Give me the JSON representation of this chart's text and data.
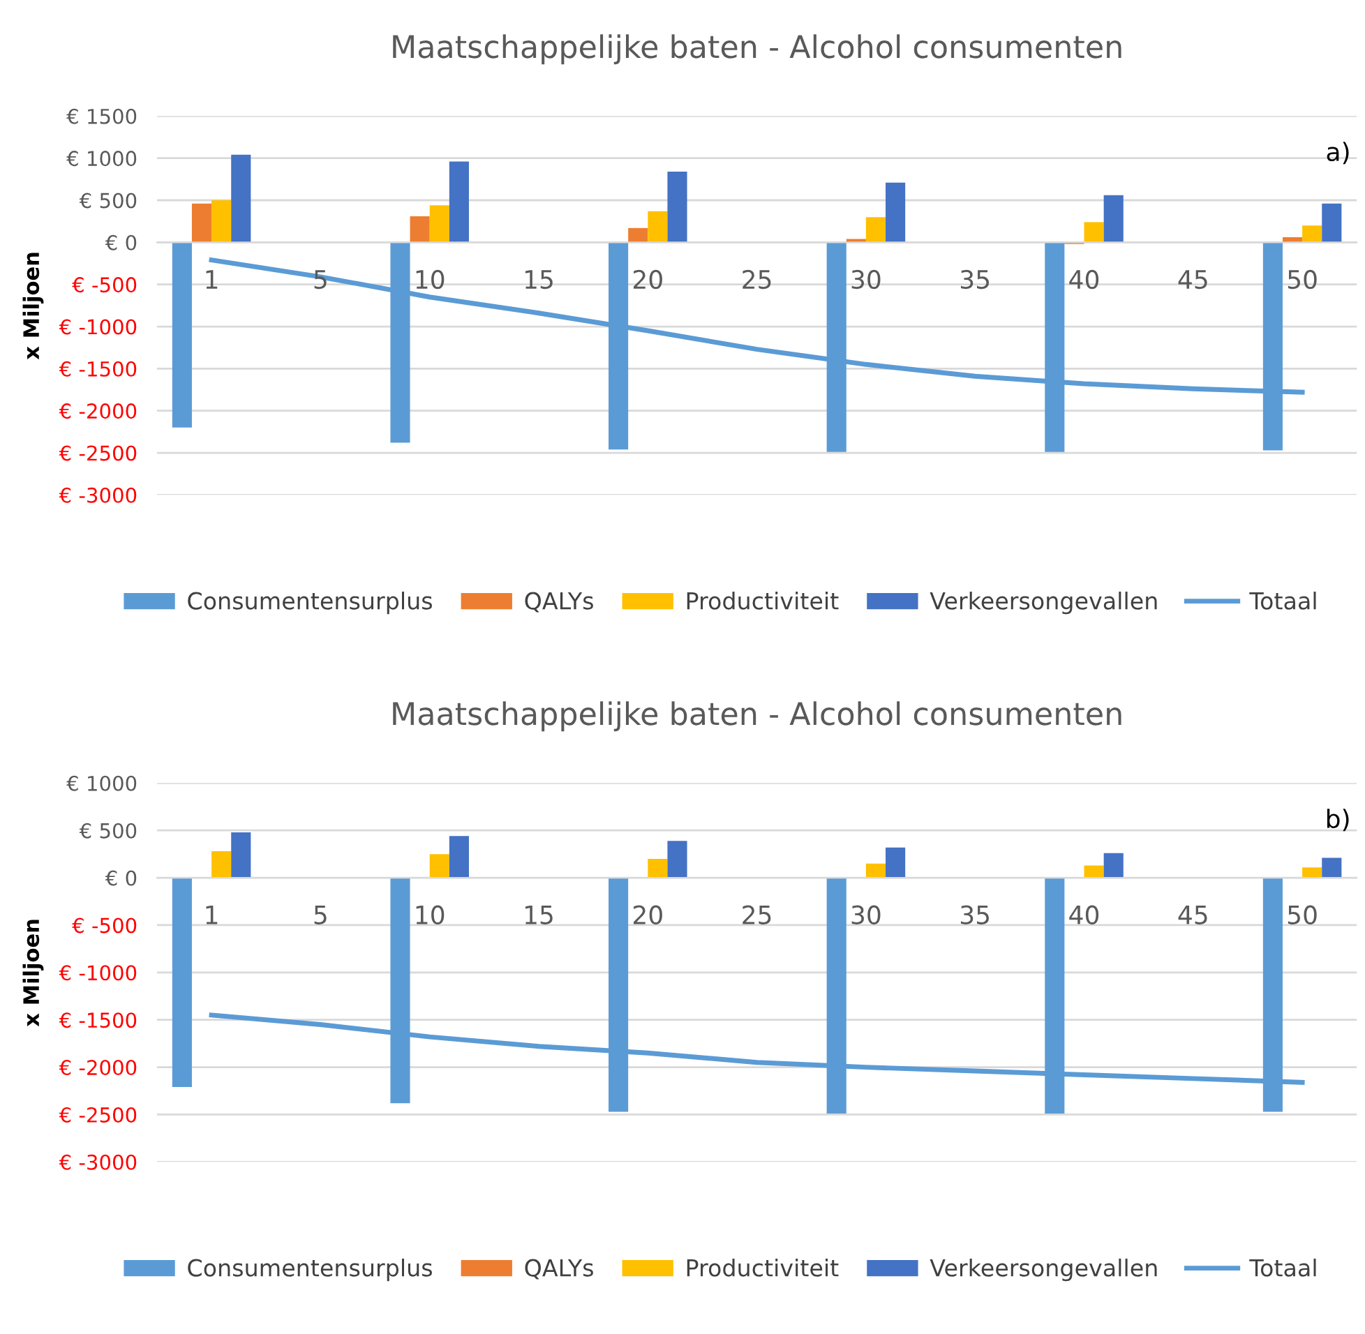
{
  "chart_data": [
    {
      "type": "bar",
      "title": "Maatschappelijke baten - Alcohol consumenten",
      "ylabel": "x Miljoen",
      "annotations": [
        "a)"
      ],
      "categories": [
        "1",
        "5",
        "10",
        "15",
        "20",
        "25",
        "30",
        "35",
        "40",
        "45",
        "50"
      ],
      "series": [
        {
          "name": "Consumentensurplus",
          "color": "#5b9bd5",
          "values": [
            -2200,
            null,
            -2380,
            null,
            -2460,
            null,
            -2490,
            null,
            -2490,
            null,
            -2470
          ]
        },
        {
          "name": "QALYs",
          "color": "#ed7d31",
          "values": [
            460,
            null,
            310,
            null,
            170,
            null,
            40,
            null,
            -20,
            null,
            60
          ]
        },
        {
          "name": "Productiviteit",
          "color": "#ffc000",
          "values": [
            500,
            null,
            440,
            null,
            370,
            null,
            300,
            null,
            240,
            null,
            200
          ]
        },
        {
          "name": "Verkeersongevallen",
          "color": "#4472c4",
          "values": [
            1040,
            null,
            960,
            null,
            840,
            null,
            710,
            null,
            560,
            null,
            460
          ]
        },
        {
          "name": "Totaal",
          "type": "line",
          "color": "#5b9bd5",
          "values": [
            -210,
            -410,
            -650,
            -840,
            -1050,
            -1270,
            -1450,
            -1590,
            -1680,
            -1740,
            -1780
          ]
        }
      ],
      "ylim": [
        -3000,
        1500
      ],
      "yticks": [
        {
          "value": -3000,
          "label": "€ -3000"
        },
        {
          "value": -2500,
          "label": "€ -2500"
        },
        {
          "value": -2000,
          "label": "€ -2000"
        },
        {
          "value": -1500,
          "label": "€ -1500"
        },
        {
          "value": -1000,
          "label": "€ -1000"
        },
        {
          "value": -500,
          "label": "€ -500"
        },
        {
          "value": 0,
          "label": "€ 0"
        },
        {
          "value": 500,
          "label": "€ 500"
        },
        {
          "value": 1000,
          "label": "€ 1000"
        },
        {
          "value": 1500,
          "label": "€ 1500"
        }
      ],
      "grid": "y",
      "legend": "bottom",
      "marker": "none"
    },
    {
      "type": "bar",
      "title": "Maatschappelijke baten - Alcohol consumenten",
      "ylabel": "x Miljoen",
      "annotations": [
        "b)"
      ],
      "categories": [
        "1",
        "5",
        "10",
        "15",
        "20",
        "25",
        "30",
        "35",
        "40",
        "45",
        "50"
      ],
      "series": [
        {
          "name": "Consumentensurplus",
          "color": "#5b9bd5",
          "values": [
            -2210,
            null,
            -2380,
            null,
            -2470,
            null,
            -2490,
            null,
            -2490,
            null,
            -2470
          ]
        },
        {
          "name": "QALYs",
          "color": "#ed7d31",
          "values": [
            null,
            null,
            null,
            null,
            null,
            null,
            null,
            null,
            null,
            null,
            null
          ]
        },
        {
          "name": "Productiviteit",
          "color": "#ffc000",
          "values": [
            280,
            null,
            250,
            null,
            200,
            null,
            150,
            null,
            130,
            null,
            110
          ]
        },
        {
          "name": "Verkeersongevallen",
          "color": "#4472c4",
          "values": [
            480,
            null,
            440,
            null,
            390,
            null,
            320,
            null,
            260,
            null,
            210
          ]
        },
        {
          "name": "Totaal",
          "type": "line",
          "color": "#5b9bd5",
          "values": [
            -1450,
            -1550,
            -1680,
            -1780,
            -1850,
            -1950,
            -2000,
            -2040,
            -2080,
            -2120,
            -2160
          ]
        }
      ],
      "ylim": [
        -3000,
        1000
      ],
      "yticks": [
        {
          "value": -3000,
          "label": "€ -3000"
        },
        {
          "value": -2500,
          "label": "€ -2500"
        },
        {
          "value": -2000,
          "label": "€ -2000"
        },
        {
          "value": -1500,
          "label": "€ -1500"
        },
        {
          "value": -1000,
          "label": "€ -1000"
        },
        {
          "value": -500,
          "label": "€ -500"
        },
        {
          "value": 0,
          "label": "€ 0"
        },
        {
          "value": 500,
          "label": "€ 500"
        },
        {
          "value": 1000,
          "label": "€ 1000"
        }
      ],
      "grid": "y",
      "legend": "bottom",
      "marker": "none"
    }
  ]
}
